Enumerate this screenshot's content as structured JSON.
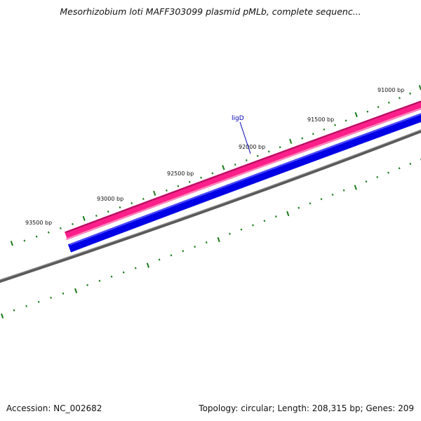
{
  "title": "Mesorhizobium loti MAFF303099 plasmid pMLb, complete sequenc...",
  "footer": {
    "accession": "Accession: NC_002682",
    "summary": "Topology: circular; Length: 208,315 bp; Genes: 209"
  },
  "scale_labels": [
    {
      "bp": 91000,
      "text": "91000 bp"
    },
    {
      "bp": 91500,
      "text": "91500 bp"
    },
    {
      "bp": 92000,
      "text": "92000 bp"
    },
    {
      "bp": 92500,
      "text": "92500 bp"
    },
    {
      "bp": 93000,
      "text": "93000 bp"
    },
    {
      "bp": 93500,
      "text": "93500 bp"
    }
  ],
  "genes": [
    {
      "name": "ligD",
      "strand": "forward"
    }
  ],
  "colors": {
    "forward_strand": "#ff1f8a",
    "reverse_strand": "#0000e6",
    "backbone": "#777777",
    "tick": "#1a7a1a",
    "gene_label": "#0000b0"
  }
}
